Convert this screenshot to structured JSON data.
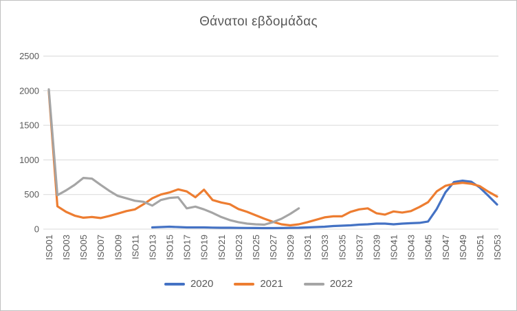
{
  "chart_data": {
    "type": "line",
    "title": "Θάνατοι εβδομάδας",
    "xlabel": "",
    "ylabel": "",
    "ylim": [
      0,
      2500
    ],
    "y_ticks": [
      0,
      500,
      1000,
      1500,
      2000,
      2500
    ],
    "grid": true,
    "legend_position": "bottom",
    "x_tick_step": 2,
    "categories": [
      "ISO01",
      "ISO02",
      "ISO03",
      "ISO04",
      "ISO05",
      "ISO06",
      "ISO07",
      "ISO08",
      "ISO09",
      "ISO10",
      "ISO11",
      "ISO12",
      "ISO13",
      "ISO14",
      "ISO15",
      "ISO16",
      "ISO17",
      "ISO18",
      "ISO19",
      "ISO20",
      "ISO21",
      "ISO22",
      "ISO23",
      "ISO24",
      "ISO25",
      "ISO26",
      "ISO27",
      "ISO28",
      "ISO29",
      "ISO30",
      "ISO31",
      "ISO32",
      "ISO33",
      "ISO34",
      "ISO35",
      "ISO36",
      "ISO37",
      "ISO38",
      "ISO39",
      "ISO40",
      "ISO41",
      "ISO42",
      "ISO43",
      "ISO44",
      "ISO45",
      "ISO46",
      "ISO47",
      "ISO48",
      "ISO49",
      "ISO50",
      "ISO51",
      "ISO52",
      "ISO53"
    ],
    "series": [
      {
        "name": "2020",
        "color": "#4472C4",
        "values": [
          null,
          null,
          null,
          null,
          null,
          null,
          null,
          null,
          null,
          null,
          null,
          null,
          25,
          30,
          35,
          30,
          25,
          25,
          25,
          22,
          20,
          20,
          18,
          17,
          16,
          15,
          15,
          16,
          18,
          20,
          25,
          30,
          35,
          45,
          50,
          55,
          65,
          70,
          80,
          80,
          70,
          80,
          85,
          90,
          110,
          290,
          530,
          680,
          700,
          685,
          600,
          480,
          355
        ]
      },
      {
        "name": "2021",
        "color": "#ED7D31",
        "values": [
          1990,
          330,
          250,
          195,
          165,
          175,
          160,
          190,
          225,
          260,
          285,
          360,
          445,
          500,
          530,
          575,
          545,
          460,
          570,
          420,
          385,
          360,
          290,
          250,
          200,
          150,
          105,
          70,
          55,
          70,
          100,
          135,
          170,
          185,
          185,
          250,
          285,
          300,
          230,
          210,
          255,
          240,
          260,
          320,
          390,
          545,
          625,
          655,
          670,
          655,
          620,
          540,
          470
        ]
      },
      {
        "name": "2022",
        "color": "#A5A5A5",
        "values": [
          2020,
          490,
          560,
          640,
          740,
          730,
          640,
          555,
          480,
          445,
          410,
          395,
          340,
          420,
          450,
          460,
          300,
          325,
          285,
          235,
          175,
          130,
          100,
          80,
          70,
          65,
          100,
          150,
          220,
          300
        ]
      }
    ],
    "colors": {
      "axis_text": "#595959",
      "gridline": "#D9D9D9",
      "title_text": "#595959",
      "legend_text": "#595959",
      "background": "#FFFFFF",
      "border": "#BFBFBF"
    }
  }
}
